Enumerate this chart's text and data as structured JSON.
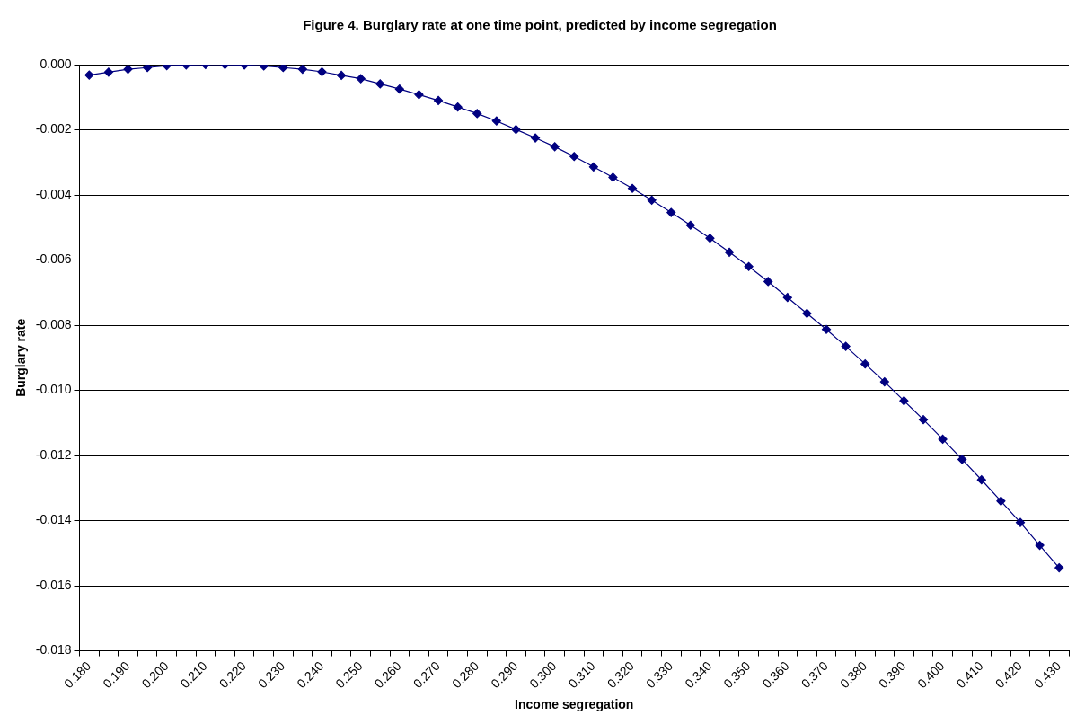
{
  "chart_data": {
    "type": "line",
    "title": "Figure 4. Burglary rate at one time point, predicted by income segregation",
    "xlabel": "Income segregation",
    "ylabel": "Burglary rate",
    "categories": [
      "0.180",
      null,
      "0.190",
      null,
      "0.200",
      null,
      "0.210",
      null,
      "0.220",
      null,
      "0.230",
      null,
      "0.240",
      null,
      "0.250",
      null,
      "0.260",
      null,
      "0.270",
      null,
      "0.280",
      null,
      "0.290",
      null,
      "0.300",
      null,
      "0.310",
      null,
      "0.320",
      null,
      "0.330",
      null,
      "0.340",
      null,
      "0.350",
      null,
      "0.360",
      null,
      "0.370",
      null,
      "0.380",
      null,
      "0.390",
      null,
      "0.400",
      null,
      "0.410",
      null,
      "0.420",
      null,
      "0.430"
    ],
    "series": [
      {
        "color": "#000080",
        "values": [
          -0.00032,
          -0.00023,
          -0.00014,
          -9e-05,
          -3e-05,
          -1e-05,
          0,
          0,
          -1e-05,
          -4e-05,
          -9e-05,
          -0.00014,
          -0.00022,
          -0.00033,
          -0.00043,
          -0.00059,
          -0.00075,
          -0.00092,
          -0.0011,
          -0.0013,
          -0.0015,
          -0.00173,
          -0.00199,
          -0.00225,
          -0.00252,
          -0.00282,
          -0.00314,
          -0.00346,
          -0.0038,
          -0.00416,
          -0.00454,
          -0.00493,
          -0.00533,
          -0.00576,
          -0.0062,
          -0.00666,
          -0.00715,
          -0.00764,
          -0.00813,
          -0.00865,
          -0.00919,
          -0.00974,
          -0.01032,
          -0.0109,
          -0.0115,
          -0.01212,
          -0.01275,
          -0.0134,
          -0.01406,
          -0.01476,
          -0.01545
        ]
      }
    ],
    "ylim": [
      -0.018,
      0
    ],
    "yticks": [
      {
        "value": -0.018,
        "label": "-0.018"
      },
      {
        "value": -0.016,
        "label": "-0.016"
      },
      {
        "value": -0.014,
        "label": "-0.014"
      },
      {
        "value": -0.012,
        "label": "-0.012"
      },
      {
        "value": -0.01,
        "label": "-0.010"
      },
      {
        "value": -0.008,
        "label": "-0.008"
      },
      {
        "value": -0.006,
        "label": "-0.006"
      },
      {
        "value": -0.004,
        "label": "-0.004"
      },
      {
        "value": -0.002,
        "label": "-0.002"
      },
      {
        "value": 0,
        "label": "0.000"
      }
    ],
    "grid": "y",
    "legend": false,
    "marker": "diamond",
    "line_style": "solid"
  }
}
